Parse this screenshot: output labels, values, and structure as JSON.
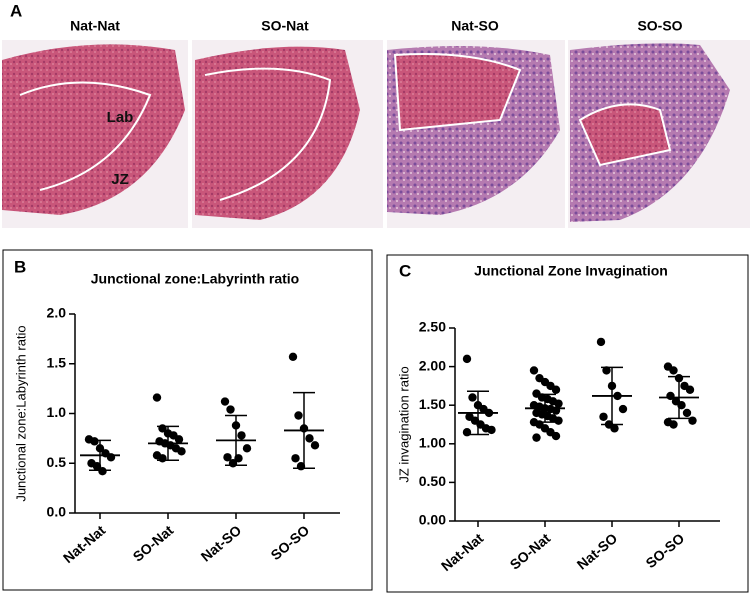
{
  "figure": {
    "panel_label": "A",
    "images": [
      {
        "title": "Nat-Nat",
        "annotations": [
          "Lab",
          "JZ"
        ]
      },
      {
        "title": "SO-Nat"
      },
      {
        "title": "Nat-SO"
      },
      {
        "title": "SO-SO"
      }
    ]
  },
  "chart_data": [
    {
      "type": "strip",
      "panel_label": "B",
      "title": "Junctional zone:Labyrinth ratio",
      "y_label": "Junctional zone:Labyrinth ratio",
      "categories": [
        "Nat-Nat",
        "SO-Nat",
        "Nat-SO",
        "SO-SO"
      ],
      "points": [
        [
          0.74,
          0.72,
          0.65,
          0.6,
          0.56,
          0.5,
          0.47,
          0.42
        ],
        [
          1.16,
          0.85,
          0.8,
          0.78,
          0.74,
          0.72,
          0.7,
          0.68,
          0.65,
          0.62,
          0.58,
          0.55
        ],
        [
          1.12,
          1.04,
          0.88,
          0.78,
          0.65,
          0.56,
          0.5,
          0.55
        ],
        [
          1.57,
          0.98,
          0.85,
          0.75,
          0.68,
          0.55,
          0.47
        ]
      ],
      "mean": [
        0.58,
        0.7,
        0.73,
        0.83
      ],
      "sd": [
        0.15,
        0.17,
        0.25,
        0.38
      ],
      "ylim": [
        0,
        2
      ],
      "yticks": [
        {
          "value": 0,
          "label": "0.0"
        },
        {
          "value": 0.5,
          "label": "0.5"
        },
        {
          "value": 1,
          "label": "1.0"
        },
        {
          "value": 1.5,
          "label": "1.5"
        },
        {
          "value": 2,
          "label": "2.0"
        }
      ],
      "color": "#000000"
    },
    {
      "type": "strip",
      "panel_label": "C",
      "title": "Junctional Zone Invagination",
      "y_label": "JZ invagination ratio",
      "categories": [
        "Nat-Nat",
        "SO-Nat",
        "Nat-SO",
        "SO-SO"
      ],
      "points": [
        [
          2.1,
          1.6,
          1.5,
          1.45,
          1.4,
          1.35,
          1.3,
          1.25,
          1.2,
          1.18,
          1.15
        ],
        [
          1.95,
          1.85,
          1.8,
          1.75,
          1.7,
          1.65,
          1.6,
          1.58,
          1.55,
          1.52,
          1.5,
          1.48,
          1.46,
          1.45,
          1.43,
          1.4,
          1.38,
          1.36,
          1.33,
          1.3,
          1.28,
          1.25,
          1.2,
          1.15,
          1.1,
          1.08
        ],
        [
          2.32,
          1.95,
          1.75,
          1.62,
          1.45,
          1.35,
          1.25,
          1.2
        ],
        [
          2.0,
          1.95,
          1.85,
          1.75,
          1.7,
          1.62,
          1.55,
          1.5,
          1.4,
          1.3,
          1.28,
          1.25
        ]
      ],
      "mean": [
        1.4,
        1.46,
        1.62,
        1.6
      ],
      "sd": [
        0.28,
        0.18,
        0.37,
        0.27
      ],
      "ylim": [
        0,
        2.5
      ],
      "yticks": [
        {
          "value": 0,
          "label": "0.00"
        },
        {
          "value": 0.5,
          "label": "0.50"
        },
        {
          "value": 1,
          "label": "1.00"
        },
        {
          "value": 1.5,
          "label": "1.50"
        },
        {
          "value": 2,
          "label": "2.00"
        },
        {
          "value": 2.5,
          "label": "2.50"
        }
      ],
      "color": "#000000"
    }
  ]
}
